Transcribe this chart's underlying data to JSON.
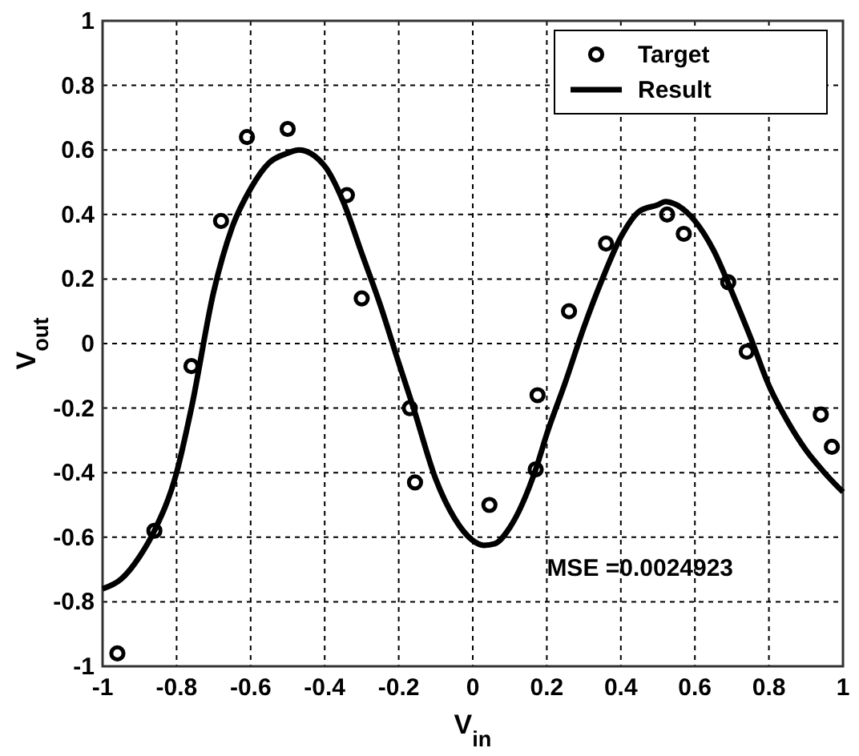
{
  "chart_data": {
    "type": "scatter",
    "xlabel": "V$_{in}$",
    "ylabel": "V$_{out}$",
    "xlim": [
      -1,
      1
    ],
    "ylim": [
      -1,
      1
    ],
    "xticks": [
      -1,
      -0.8,
      -0.6,
      -0.4,
      -0.2,
      0,
      0.2,
      0.4,
      0.6,
      0.8,
      1
    ],
    "yticks": [
      -1,
      -0.8,
      -0.6,
      -0.4,
      -0.2,
      0,
      0.2,
      0.4,
      0.6,
      0.8,
      1
    ],
    "grid": true,
    "legend": "top right",
    "annotations": [
      "MSE =0.0024923"
    ],
    "series": [
      {
        "name": "Target",
        "marker": "circle",
        "color": "#000000",
        "x": [
          -0.96,
          -0.86,
          -0.76,
          -0.68,
          -0.61,
          -0.5,
          -0.34,
          -0.3,
          -0.17,
          -0.156,
          0.045,
          0.175,
          0.17,
          0.26,
          0.36,
          0.525,
          0.57,
          0.69,
          0.74,
          0.94,
          0.97
        ],
        "values": [
          -0.96,
          -0.58,
          -0.07,
          0.38,
          0.64,
          0.665,
          0.46,
          0.14,
          -0.2,
          -0.43,
          -0.5,
          -0.16,
          -0.39,
          0.1,
          0.31,
          0.4,
          0.34,
          0.19,
          -0.025,
          -0.22,
          -0.32
        ]
      },
      {
        "name": "Result",
        "type": "line",
        "line_style": "solid",
        "color": "#000000",
        "x": [
          -1,
          -0.95,
          -0.9,
          -0.86,
          -0.8,
          -0.76,
          -0.7,
          -0.65,
          -0.6,
          -0.55,
          -0.5,
          -0.47,
          -0.4,
          -0.35,
          -0.3,
          -0.25,
          -0.2,
          -0.16,
          -0.1,
          -0.05,
          0,
          0.03,
          0.06,
          0.1,
          0.17,
          0.2,
          0.25,
          0.3,
          0.35,
          0.4,
          0.45,
          0.5,
          0.52,
          0.55,
          0.6,
          0.65,
          0.7,
          0.75,
          0.8,
          0.85,
          0.9,
          0.95,
          1
        ],
        "values": [
          -0.76,
          -0.73,
          -0.66,
          -0.58,
          -0.4,
          -0.2,
          0.16,
          0.36,
          0.48,
          0.56,
          0.59,
          0.6,
          0.55,
          0.44,
          0.28,
          0.12,
          -0.06,
          -0.2,
          -0.42,
          -0.54,
          -0.61,
          -0.625,
          -0.62,
          -0.57,
          -0.39,
          -0.28,
          -0.12,
          0.05,
          0.2,
          0.33,
          0.41,
          0.43,
          0.44,
          0.43,
          0.38,
          0.29,
          0.16,
          0.02,
          -0.13,
          -0.24,
          -0.33,
          -0.4,
          -0.46
        ]
      }
    ]
  }
}
